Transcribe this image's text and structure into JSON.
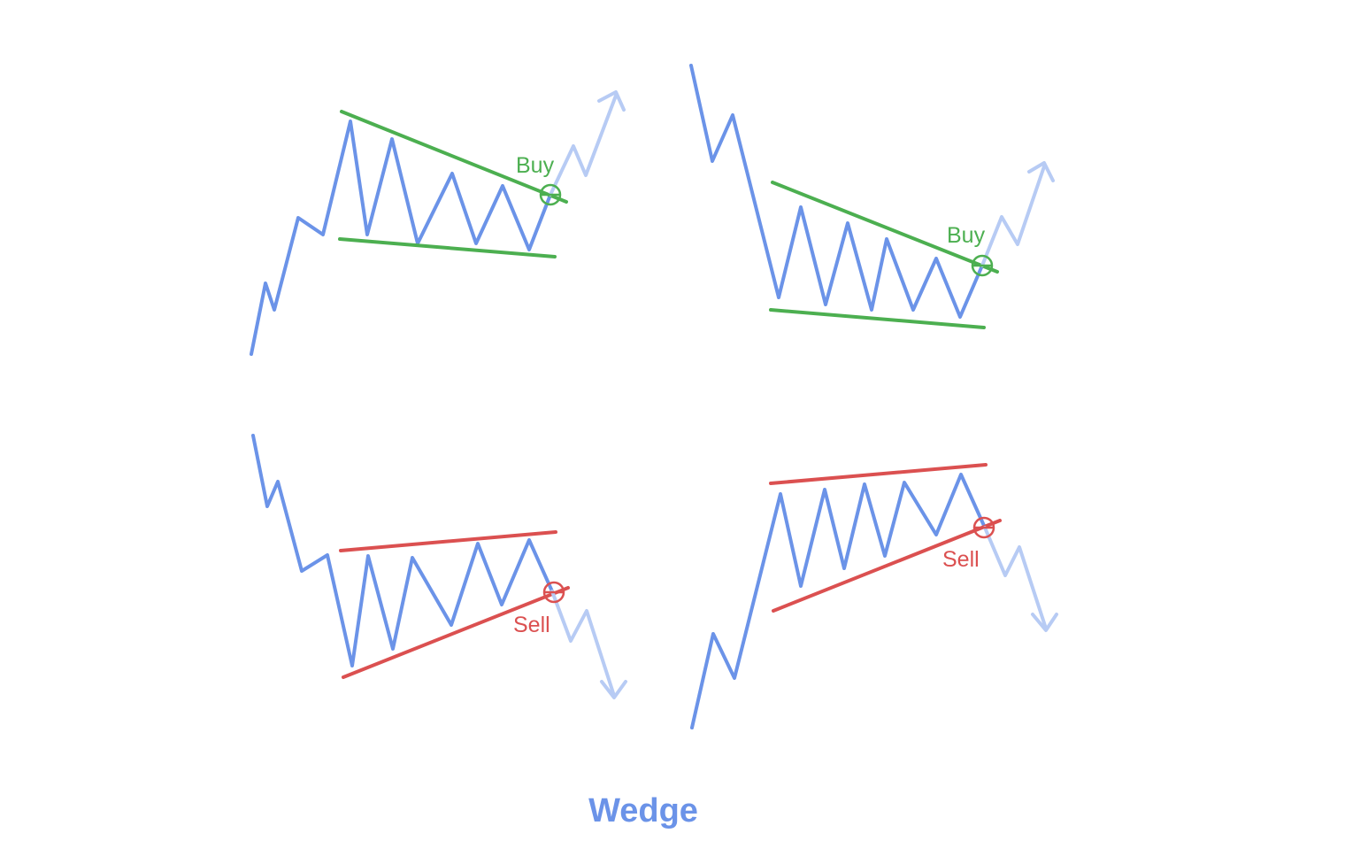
{
  "caption": "Wedge",
  "labels": {
    "buy": "Buy",
    "sell": "Sell"
  },
  "colors": {
    "price": "#6b93e8",
    "projection": "#b7cbf4",
    "bullish": "#4caf50",
    "bearish": "#db5050",
    "caption": "#6b93e8"
  },
  "icons": {
    "breakout_marker": "crosshair-circle-icon",
    "direction": "chevron-arrow-icon"
  }
}
